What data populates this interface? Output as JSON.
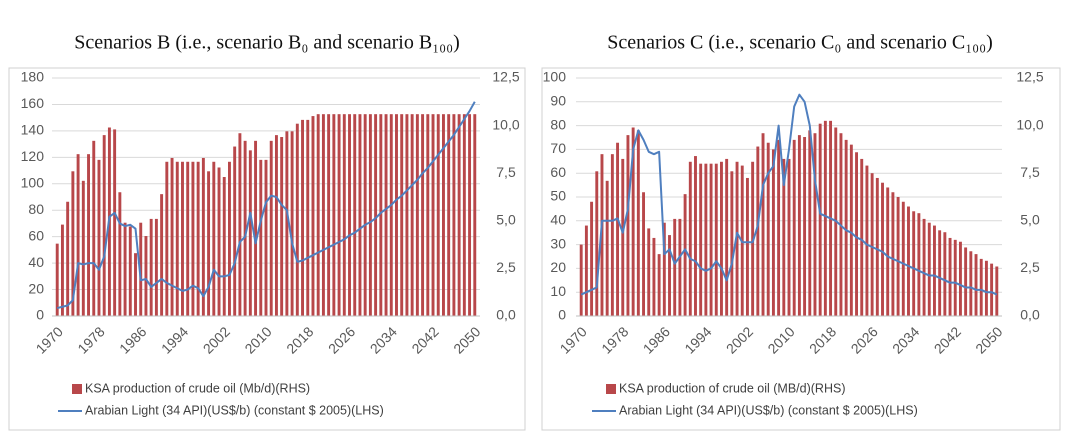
{
  "chart_data": [
    {
      "type": "combo",
      "title": "Scenarios B (i.e., scenario B₀ and scenario B₁₀₀)",
      "x": [
        1970,
        1971,
        1972,
        1973,
        1974,
        1975,
        1976,
        1977,
        1978,
        1979,
        1980,
        1981,
        1982,
        1983,
        1984,
        1985,
        1986,
        1987,
        1988,
        1989,
        1990,
        1991,
        1992,
        1993,
        1994,
        1995,
        1996,
        1997,
        1998,
        1999,
        2000,
        2001,
        2002,
        2003,
        2004,
        2005,
        2006,
        2007,
        2008,
        2009,
        2010,
        2011,
        2012,
        2013,
        2014,
        2015,
        2016,
        2017,
        2018,
        2019,
        2020,
        2021,
        2022,
        2023,
        2024,
        2025,
        2026,
        2027,
        2028,
        2029,
        2030,
        2031,
        2032,
        2033,
        2034,
        2035,
        2036,
        2037,
        2038,
        2039,
        2040,
        2041,
        2042,
        2043,
        2044,
        2045,
        2046,
        2047,
        2048,
        2049,
        2050
      ],
      "xlim": [
        1969,
        2051
      ],
      "xticks": [
        1970,
        1978,
        1986,
        1994,
        2002,
        2010,
        2018,
        2026,
        2034,
        2042,
        2050
      ],
      "ylim": [
        0,
        180
      ],
      "yticks": [
        0,
        20,
        40,
        60,
        80,
        100,
        120,
        140,
        160,
        180
      ],
      "y2lim": [
        0,
        12.5
      ],
      "y2ticks": [
        {
          "value": 0,
          "label": "0,0"
        },
        {
          "value": 2.5,
          "label": "2,5"
        },
        {
          "value": 5,
          "label": "5,0"
        },
        {
          "value": 7.5,
          "label": "7,5"
        },
        {
          "value": 10,
          "label": "10,0"
        },
        {
          "value": 12.5,
          "label": "12,5"
        }
      ],
      "grid": true,
      "series": [
        {
          "name": "KSA production of crude oil (Mb/d)(RHS)",
          "type": "bar",
          "axis": "y2",
          "color": "#b8474a",
          "values": [
            3.8,
            4.8,
            6.0,
            7.6,
            8.5,
            7.1,
            8.5,
            9.2,
            8.2,
            9.5,
            9.9,
            9.8,
            6.5,
            4.9,
            4.7,
            3.3,
            4.9,
            4.2,
            5.1,
            5.1,
            6.4,
            8.1,
            8.3,
            8.1,
            8.1,
            8.1,
            8.1,
            8.1,
            8.3,
            7.6,
            8.1,
            7.8,
            7.3,
            8.1,
            8.9,
            9.6,
            9.2,
            8.7,
            9.2,
            8.2,
            8.2,
            9.2,
            9.5,
            9.4,
            9.7,
            9.7,
            10.1,
            10.3,
            10.3,
            10.5,
            10.6,
            10.6,
            10.6,
            10.6,
            10.6,
            10.6,
            10.6,
            10.6,
            10.6,
            10.6,
            10.6,
            10.6,
            10.6,
            10.6,
            10.6,
            10.6,
            10.6,
            10.6,
            10.6,
            10.6,
            10.6,
            10.6,
            10.6,
            10.6,
            10.6,
            10.6,
            10.6,
            10.6,
            10.6,
            10.6,
            10.6
          ]
        },
        {
          "name": "Arabian Light (34 API)(US$/b) (constant $ 2005)(LHS)",
          "type": "line",
          "axis": "y",
          "color": "#4f7fbf",
          "values": [
            6,
            7,
            8,
            12,
            40,
            39,
            40,
            40,
            35,
            45,
            75,
            78,
            70,
            68,
            69,
            66,
            27,
            28,
            22,
            25,
            28,
            25,
            23,
            21,
            19,
            20,
            23,
            21,
            15,
            22,
            35,
            30,
            30,
            31,
            40,
            56,
            60,
            78,
            55,
            72,
            86,
            91,
            90,
            84,
            80,
            55,
            41,
            42,
            44,
            46,
            48,
            50,
            52,
            54,
            56,
            58,
            61,
            63,
            66,
            69,
            71,
            74,
            78,
            81,
            84,
            88,
            91,
            95,
            99,
            103,
            108,
            112,
            117,
            122,
            127,
            132,
            137,
            143,
            149,
            155,
            162
          ]
        }
      ]
    },
    {
      "type": "combo",
      "title": "Scenarios C (i.e., scenario C₀ and scenario C₁₀₀)",
      "x": [
        1970,
        1971,
        1972,
        1973,
        1974,
        1975,
        1976,
        1977,
        1978,
        1979,
        1980,
        1981,
        1982,
        1983,
        1984,
        1985,
        1986,
        1987,
        1988,
        1989,
        1990,
        1991,
        1992,
        1993,
        1994,
        1995,
        1996,
        1997,
        1998,
        1999,
        2000,
        2001,
        2002,
        2003,
        2004,
        2005,
        2006,
        2007,
        2008,
        2009,
        2010,
        2011,
        2012,
        2013,
        2014,
        2015,
        2016,
        2017,
        2018,
        2019,
        2020,
        2021,
        2022,
        2023,
        2024,
        2025,
        2026,
        2027,
        2028,
        2029,
        2030,
        2031,
        2032,
        2033,
        2034,
        2035,
        2036,
        2037,
        2038,
        2039,
        2040,
        2041,
        2042,
        2043,
        2044,
        2045,
        2046,
        2047,
        2048,
        2049,
        2050
      ],
      "xlim": [
        1969,
        2051
      ],
      "xticks": [
        1970,
        1978,
        1986,
        1994,
        2002,
        2010,
        2018,
        2026,
        2034,
        2042,
        2050
      ],
      "ylim": [
        0,
        100
      ],
      "yticks": [
        0,
        10,
        20,
        30,
        40,
        50,
        60,
        70,
        80,
        90,
        100
      ],
      "y2lim": [
        0,
        12.5
      ],
      "y2ticks": [
        {
          "value": 0,
          "label": "0,0"
        },
        {
          "value": 2.5,
          "label": "2,5"
        },
        {
          "value": 5,
          "label": "5,0"
        },
        {
          "value": 7.5,
          "label": "7,5"
        },
        {
          "value": 10,
          "label": "10,0"
        },
        {
          "value": 12.5,
          "label": "12,5"
        }
      ],
      "grid": true,
      "series": [
        {
          "name": "KSA production of crude oil (MB/d)(RHS)",
          "type": "bar",
          "axis": "y2",
          "color": "#b8474a",
          "values": [
            3.75,
            4.75,
            6,
            7.6,
            8.5,
            7.1,
            8.5,
            9.1,
            8.25,
            9.5,
            9.9,
            9.75,
            6.5,
            4.6,
            4.1,
            3.25,
            4.9,
            4.25,
            5.1,
            5.1,
            6.4,
            8.1,
            8.4,
            8,
            8,
            8,
            8,
            8.1,
            8.25,
            7.6,
            8.1,
            7.9,
            7.25,
            8.1,
            8.9,
            9.6,
            9.1,
            8.75,
            9.25,
            8.25,
            8.25,
            9.25,
            9.5,
            9.4,
            9.75,
            9.6,
            10.1,
            10.25,
            10.25,
            9.9,
            9.6,
            9.25,
            9,
            8.6,
            8.25,
            7.9,
            7.5,
            7.25,
            7,
            6.75,
            6.5,
            6.25,
            6,
            5.75,
            5.5,
            5.4,
            5.1,
            4.9,
            4.75,
            4.5,
            4.4,
            4.1,
            4,
            3.9,
            3.6,
            3.4,
            3.25,
            3,
            2.9,
            2.75,
            2.6
          ]
        },
        {
          "name": "Arabian Light (34 API)(US$/b) (constant $ 2005)(LHS)",
          "type": "line",
          "axis": "y",
          "color": "#4f7fbf",
          "values": [
            9,
            10,
            11,
            12,
            40,
            40,
            40,
            41,
            35,
            45,
            70,
            78,
            74,
            69,
            68,
            69,
            26,
            28,
            22,
            25,
            28,
            24,
            23,
            20,
            19,
            20,
            23,
            20,
            15,
            22,
            35,
            31,
            31,
            31,
            38,
            55,
            60,
            63,
            80,
            55,
            70,
            88,
            93,
            90,
            80,
            57,
            43,
            42,
            41,
            40,
            38,
            36,
            35,
            33,
            32,
            30,
            29,
            28,
            27,
            25,
            24,
            23,
            22,
            21,
            20,
            19,
            18,
            17,
            17,
            16,
            15,
            14,
            14,
            13,
            12,
            12,
            11,
            11,
            10,
            10,
            9
          ]
        }
      ]
    }
  ]
}
